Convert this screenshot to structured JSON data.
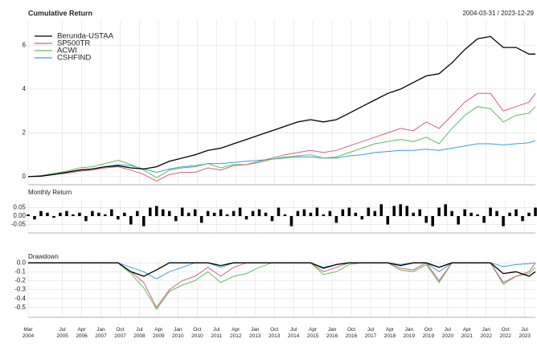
{
  "chart_data": [
    {
      "type": "line",
      "title": "Cumulative Return",
      "subtitle": "2004-03-31 / 2023-12-29",
      "legend": "topleft",
      "grid": true,
      "x": [
        "2004-03",
        "2004-09",
        "2005-03",
        "2005-09",
        "2006-03",
        "2006-09",
        "2007-03",
        "2007-09",
        "2008-03",
        "2008-09",
        "2009-03",
        "2009-09",
        "2010-03",
        "2010-09",
        "2011-03",
        "2011-09",
        "2012-03",
        "2012-09",
        "2013-03",
        "2013-09",
        "2014-03",
        "2014-09",
        "2015-03",
        "2015-09",
        "2016-03",
        "2016-09",
        "2017-03",
        "2017-09",
        "2018-03",
        "2018-09",
        "2019-03",
        "2019-09",
        "2020-03",
        "2020-09",
        "2021-03",
        "2021-09",
        "2022-03",
        "2022-09",
        "2023-03",
        "2023-09",
        "2023-12"
      ],
      "xlim": [
        "2004-03",
        "2023-12"
      ],
      "ylim": [
        -0.37,
        7.15
      ],
      "yticks": [
        0,
        2,
        4,
        6
      ],
      "series": [
        {
          "name": "Berunda-USTAA",
          "color": "#000000",
          "values": [
            0,
            0.02,
            0.1,
            0.2,
            0.3,
            0.35,
            0.45,
            0.5,
            0.4,
            0.35,
            0.45,
            0.7,
            0.85,
            1.0,
            1.2,
            1.3,
            1.5,
            1.7,
            1.9,
            2.1,
            2.3,
            2.5,
            2.6,
            2.5,
            2.6,
            2.9,
            3.2,
            3.5,
            3.8,
            4.0,
            4.3,
            4.6,
            4.7,
            5.2,
            5.8,
            6.3,
            6.4,
            5.9,
            5.9,
            5.6,
            5.6
          ]
        },
        {
          "name": "SP500TR",
          "color": "#d0607e",
          "values": [
            0,
            0.05,
            0.1,
            0.15,
            0.25,
            0.3,
            0.4,
            0.45,
            0.3,
            0.1,
            -0.2,
            0.1,
            0.2,
            0.2,
            0.4,
            0.3,
            0.5,
            0.55,
            0.7,
            0.85,
            1.0,
            1.1,
            1.2,
            1.1,
            1.2,
            1.4,
            1.6,
            1.8,
            2.0,
            2.2,
            2.1,
            2.5,
            2.2,
            2.8,
            3.4,
            3.8,
            3.8,
            3.0,
            3.2,
            3.4,
            3.8
          ]
        },
        {
          "name": "ACWI",
          "color": "#5cbf5c",
          "values": [
            0,
            0.05,
            0.15,
            0.25,
            0.4,
            0.45,
            0.6,
            0.75,
            0.55,
            0.3,
            -0.05,
            0.3,
            0.4,
            0.45,
            0.6,
            0.4,
            0.55,
            0.55,
            0.65,
            0.8,
            0.9,
            0.95,
            1.0,
            0.85,
            0.9,
            1.1,
            1.3,
            1.5,
            1.6,
            1.7,
            1.6,
            1.8,
            1.5,
            2.2,
            2.8,
            3.2,
            3.1,
            2.5,
            2.8,
            2.9,
            3.2
          ]
        },
        {
          "name": "CSHFIND",
          "color": "#3a9fd6",
          "values": [
            0,
            0.05,
            0.1,
            0.2,
            0.3,
            0.35,
            0.45,
            0.55,
            0.5,
            0.35,
            0.2,
            0.35,
            0.45,
            0.5,
            0.6,
            0.6,
            0.65,
            0.7,
            0.75,
            0.8,
            0.85,
            0.9,
            0.9,
            0.85,
            0.85,
            0.95,
            1.0,
            1.1,
            1.15,
            1.2,
            1.2,
            1.25,
            1.2,
            1.3,
            1.4,
            1.5,
            1.5,
            1.45,
            1.5,
            1.55,
            1.65
          ]
        }
      ]
    },
    {
      "type": "bar",
      "title": "Monthly Return",
      "color": "#000000",
      "grid": true,
      "x": [
        "2004-03",
        "2004-06",
        "2004-09",
        "2004-12",
        "2005-03",
        "2005-06",
        "2005-09",
        "2005-12",
        "2006-03",
        "2006-06",
        "2006-09",
        "2006-12",
        "2007-03",
        "2007-06",
        "2007-09",
        "2007-12",
        "2008-03",
        "2008-06",
        "2008-09",
        "2008-12",
        "2009-03",
        "2009-06",
        "2009-09",
        "2009-12",
        "2010-03",
        "2010-06",
        "2010-09",
        "2010-12",
        "2011-03",
        "2011-06",
        "2011-09",
        "2011-12",
        "2012-03",
        "2012-06",
        "2012-09",
        "2012-12",
        "2013-03",
        "2013-06",
        "2013-09",
        "2013-12",
        "2014-03",
        "2014-06",
        "2014-09",
        "2014-12",
        "2015-03",
        "2015-06",
        "2015-09",
        "2015-12",
        "2016-03",
        "2016-06",
        "2016-09",
        "2016-12",
        "2017-03",
        "2017-06",
        "2017-09",
        "2017-12",
        "2018-03",
        "2018-06",
        "2018-09",
        "2018-12",
        "2019-03",
        "2019-06",
        "2019-09",
        "2019-12",
        "2020-03",
        "2020-06",
        "2020-09",
        "2020-12",
        "2021-03",
        "2021-06",
        "2021-09",
        "2021-12",
        "2022-03",
        "2022-06",
        "2022-09",
        "2022-12",
        "2023-03",
        "2023-06",
        "2023-09",
        "2023-12"
      ],
      "xlim": [
        "2004-03",
        "2023-12"
      ],
      "ylim": [
        -0.1,
        0.1
      ],
      "yticks": [
        -0.05,
        {
          "value": 0,
          "label": "0.00"
        },
        0.05
      ],
      "values": [
        0.01,
        -0.02,
        0.03,
        0.02,
        -0.01,
        0.02,
        0.03,
        0.01,
        0.02,
        -0.03,
        0.03,
        0.02,
        0.01,
        0.04,
        -0.02,
        0.02,
        -0.05,
        0.03,
        -0.06,
        0.05,
        0.06,
        0.04,
        0.03,
        -0.03,
        0.05,
        0.02,
        0.04,
        -0.04,
        0.03,
        0.02,
        0.04,
        0.01,
        0.03,
        0.05,
        -0.02,
        0.03,
        0.04,
        0.02,
        -0.03,
        0.05,
        0.01,
        -0.06,
        0.03,
        0.04,
        0.02,
        0.05,
        0.01,
        0.03,
        -0.04,
        0.04,
        0.05,
        0.02,
        -0.02,
        0.05,
        0.03,
        0.07,
        -0.05,
        0.06,
        0.07,
        0.06,
        0.02,
        0.04,
        -0.04,
        -0.06,
        0.05,
        0.07,
        0.03,
        -0.05,
        0.04,
        0.02,
        0.01,
        -0.04,
        0.05,
        0.03,
        -0.06,
        0.02,
        0.04,
        -0.03,
        0.02,
        0.05
      ]
    },
    {
      "type": "line",
      "title": "Drawdown",
      "grid": true,
      "x": [
        "2004-03",
        "2004-09",
        "2005-03",
        "2005-09",
        "2006-03",
        "2006-09",
        "2007-03",
        "2007-09",
        "2008-03",
        "2008-09",
        "2009-03",
        "2009-09",
        "2010-03",
        "2010-09",
        "2011-03",
        "2011-09",
        "2012-03",
        "2012-09",
        "2013-03",
        "2013-09",
        "2014-03",
        "2014-09",
        "2015-03",
        "2015-09",
        "2016-03",
        "2016-09",
        "2017-03",
        "2017-09",
        "2018-03",
        "2018-09",
        "2019-03",
        "2019-09",
        "2020-03",
        "2020-09",
        "2021-03",
        "2021-09",
        "2022-03",
        "2022-09",
        "2023-03",
        "2023-09",
        "2023-12"
      ],
      "xlim": [
        "2004-03",
        "2023-12"
      ],
      "ylim": [
        -0.61,
        0.02
      ],
      "yticks": [
        {
          "value": 0,
          "label": "0.0"
        },
        -0.1,
        -0.2,
        -0.3,
        -0.4,
        -0.5
      ],
      "xticks": [
        {
          "value": "2004-03",
          "label": "Mar 2004"
        },
        {
          "value": "2005-07",
          "label": "Jul 2005"
        },
        {
          "value": "2006-04",
          "label": "Apr 2006"
        },
        {
          "value": "2007-01",
          "label": "Jan 2007"
        },
        {
          "value": "2007-10",
          "label": "Oct 2007"
        },
        {
          "value": "2008-07",
          "label": "Jul 2008"
        },
        {
          "value": "2009-04",
          "label": "Apr 2009"
        },
        {
          "value": "2010-01",
          "label": "Jan 2010"
        },
        {
          "value": "2010-10",
          "label": "Oct 2010"
        },
        {
          "value": "2011-07",
          "label": "Jul 2011"
        },
        {
          "value": "2012-04",
          "label": "Apr 2012"
        },
        {
          "value": "2013-01",
          "label": "Jan 2013"
        },
        {
          "value": "2013-10",
          "label": "Oct 2013"
        },
        {
          "value": "2014-07",
          "label": "Jul 2014"
        },
        {
          "value": "2015-04",
          "label": "Apr 2015"
        },
        {
          "value": "2016-01",
          "label": "Jan 2016"
        },
        {
          "value": "2016-10",
          "label": "Oct 2016"
        },
        {
          "value": "2017-07",
          "label": "Jul 2017"
        },
        {
          "value": "2018-04",
          "label": "Apr 2018"
        },
        {
          "value": "2019-01",
          "label": "Jan 2019"
        },
        {
          "value": "2019-10",
          "label": "Oct 2019"
        },
        {
          "value": "2020-07",
          "label": "Jul 2020"
        },
        {
          "value": "2021-04",
          "label": "Apr 2021"
        },
        {
          "value": "2022-01",
          "label": "Jan 2022"
        },
        {
          "value": "2022-10",
          "label": "Oct 2022"
        },
        {
          "value": "2023-07",
          "label": "Jul 2023"
        }
      ],
      "series": [
        {
          "name": "Berunda-USTAA",
          "color": "#000000",
          "values": [
            0,
            0,
            0,
            0,
            0,
            0,
            0,
            0,
            -0.1,
            -0.15,
            -0.08,
            0,
            0,
            0,
            0,
            -0.03,
            0,
            0,
            0,
            0,
            0,
            0,
            0,
            -0.06,
            -0.02,
            0,
            0,
            0,
            0,
            -0.03,
            0,
            0,
            -0.05,
            0,
            0,
            0,
            0,
            -0.12,
            -0.1,
            -0.15,
            -0.1
          ]
        },
        {
          "name": "SP500TR",
          "color": "#d0607e",
          "values": [
            0,
            0,
            0,
            0,
            0,
            0,
            0,
            0,
            -0.1,
            -0.22,
            -0.5,
            -0.3,
            -0.2,
            -0.15,
            -0.05,
            -0.15,
            -0.05,
            0,
            0,
            0,
            0,
            0,
            0,
            -0.1,
            -0.05,
            0,
            0,
            0,
            0,
            -0.06,
            -0.08,
            0,
            -0.2,
            0,
            0,
            0,
            0,
            -0.22,
            -0.15,
            -0.1,
            0
          ]
        },
        {
          "name": "ACWI",
          "color": "#5cbf5c",
          "values": [
            0,
            0,
            0,
            0,
            0,
            0,
            0,
            0,
            -0.12,
            -0.28,
            -0.52,
            -0.32,
            -0.25,
            -0.2,
            -0.1,
            -0.22,
            -0.15,
            -0.12,
            -0.05,
            0,
            0,
            0,
            0,
            -0.13,
            -0.1,
            -0.02,
            0,
            0,
            0,
            -0.08,
            -0.1,
            -0.02,
            -0.22,
            0,
            0,
            0,
            0,
            -0.24,
            -0.15,
            -0.12,
            -0.05
          ]
        },
        {
          "name": "CSHFIND",
          "color": "#3a9fd6",
          "values": [
            0,
            0,
            0,
            0,
            0,
            0,
            0,
            0,
            -0.05,
            -0.1,
            -0.18,
            -0.1,
            -0.05,
            0,
            0,
            -0.05,
            0,
            0,
            0,
            0,
            0,
            0,
            0,
            -0.05,
            -0.02,
            0,
            0,
            0,
            0,
            -0.02,
            0,
            0,
            -0.1,
            0,
            0,
            0,
            0,
            -0.04,
            -0.02,
            -0.01,
            0
          ]
        }
      ]
    }
  ]
}
